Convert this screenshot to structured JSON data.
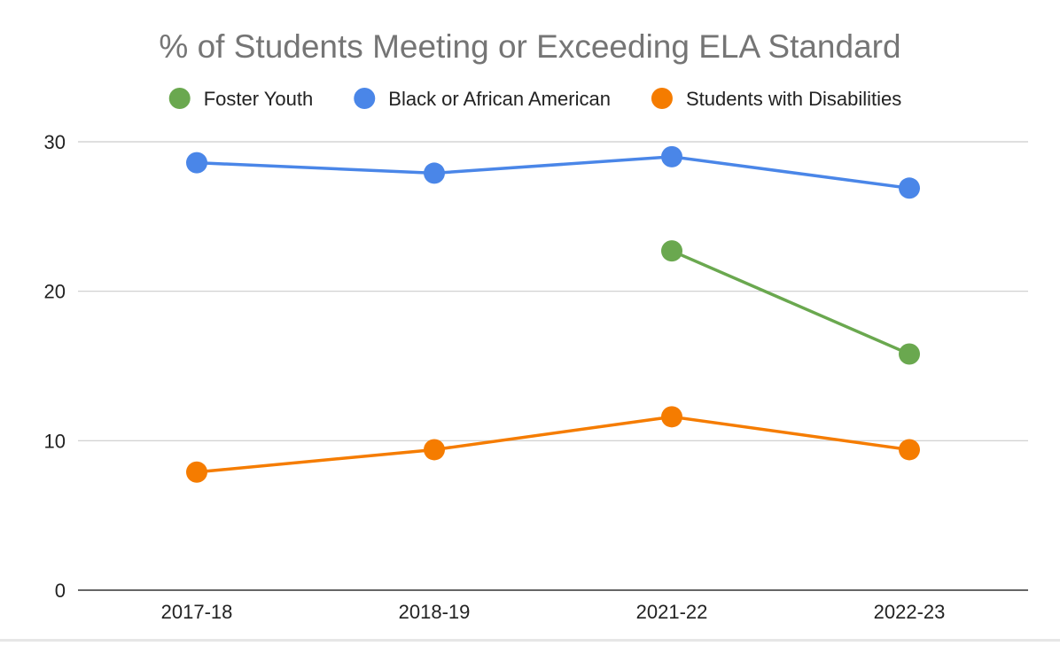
{
  "chart_data": {
    "type": "line",
    "title": "% of Students Meeting or Exceeding ELA Standard",
    "xlabel": "",
    "ylabel": "",
    "categories": [
      "2017-18",
      "2018-19",
      "2021-22",
      "2022-23"
    ],
    "ylim": [
      0,
      30
    ],
    "yticks": [
      0,
      10,
      20,
      30
    ],
    "grid": true,
    "legend_position": "top",
    "series": [
      {
        "name": "Foster Youth",
        "color": "#6aa84f",
        "values": [
          null,
          null,
          22.7,
          15.8
        ]
      },
      {
        "name": "Black or African American",
        "color": "#4a86e8",
        "values": [
          28.6,
          27.9,
          29.0,
          26.9
        ]
      },
      {
        "name": "Students with Disabilities",
        "color": "#f57c00",
        "values": [
          7.9,
          9.4,
          11.6,
          9.4
        ]
      }
    ]
  }
}
